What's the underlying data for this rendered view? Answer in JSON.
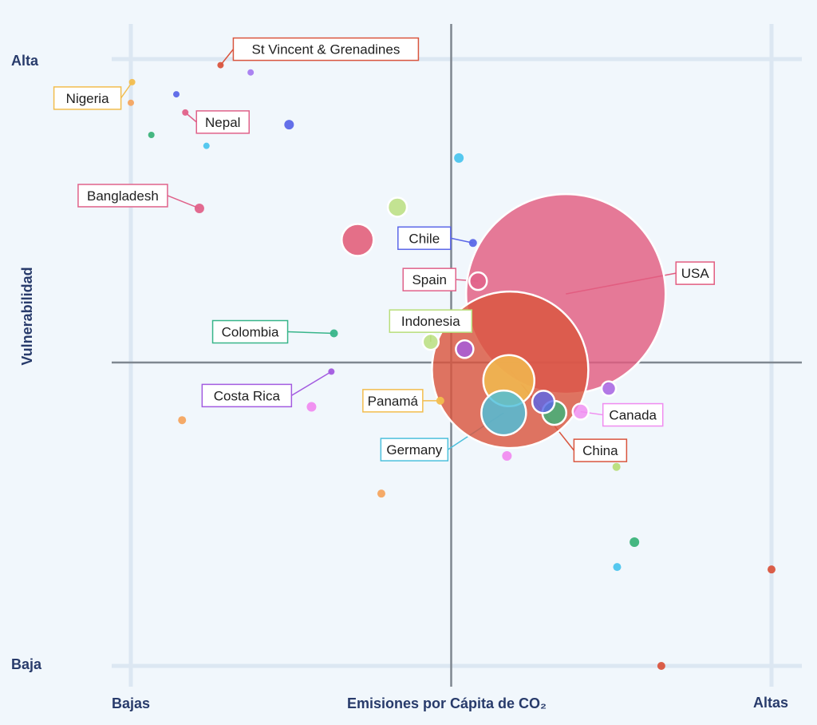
{
  "chart_data": {
    "type": "scatter",
    "title": "",
    "xlabel": "Emisiones por Cápita de CO₂",
    "ylabel": "Vulnerabilidad",
    "x_tick_labels": [
      "Bajas",
      "Altas"
    ],
    "y_tick_labels": [
      "Alta",
      "Baja"
    ],
    "xlim": [
      0,
      100
    ],
    "ylim": [
      0,
      100
    ],
    "quadrant_lines": {
      "x": 50,
      "y": 50
    },
    "grid": true,
    "points": [
      {
        "name": "St Vincent & Grenadines",
        "x": 14,
        "y": 99,
        "size": 4,
        "color": "#d9553e"
      },
      {
        "name": "",
        "x": 18.7,
        "y": 97.8,
        "size": 4,
        "color": "#a77cf0"
      },
      {
        "name": "Nigeria",
        "x": 0.2,
        "y": 96.2,
        "size": 4,
        "color": "#f2bd4e"
      },
      {
        "name": "",
        "x": 7.1,
        "y": 94.2,
        "size": 4,
        "color": "#5b67e8"
      },
      {
        "name": "",
        "x": 0,
        "y": 92.8,
        "size": 4,
        "color": "#f4a560"
      },
      {
        "name": "Nepal",
        "x": 8.5,
        "y": 91.2,
        "size": 4,
        "color": "#e0628a"
      },
      {
        "name": "",
        "x": 24.7,
        "y": 89.2,
        "size": 6,
        "color": "#5b67e8"
      },
      {
        "name": "",
        "x": 3.2,
        "y": 87.5,
        "size": 4,
        "color": "#3bb37a"
      },
      {
        "name": "",
        "x": 11.8,
        "y": 85.7,
        "size": 4,
        "color": "#4cc5ee"
      },
      {
        "name": "",
        "x": 51.2,
        "y": 83.7,
        "size": 6,
        "color": "#4cc5ee"
      },
      {
        "name": "",
        "x": 41.6,
        "y": 75.6,
        "size": 12,
        "color": "#b8de7a"
      },
      {
        "name": "Bangladesh",
        "x": 10.7,
        "y": 75.4,
        "size": 6,
        "color": "#e0628a"
      },
      {
        "name": "",
        "x": 35.4,
        "y": 70.2,
        "size": 20,
        "color": "#e0506e"
      },
      {
        "name": "Chile",
        "x": 53.4,
        "y": 69.7,
        "size": 5,
        "color": "#5b67e8"
      },
      {
        "name": "Spain",
        "x": 54.2,
        "y": 63.4,
        "size": 11,
        "color": "#e0628a"
      },
      {
        "name": "USA",
        "x": 67.9,
        "y": 61.3,
        "size": 125,
        "color": "#e25d80"
      },
      {
        "name": "Colombia",
        "x": 31.7,
        "y": 54.8,
        "size": 5,
        "color": "#38b58a"
      },
      {
        "name": "Indonesia",
        "x": 46.8,
        "y": 53.4,
        "size": 10,
        "color": "#b8de7a"
      },
      {
        "name": "",
        "x": 52.1,
        "y": 52.2,
        "size": 11,
        "color": "#a35be0"
      },
      {
        "name": "China",
        "x": 59.2,
        "y": 48.8,
        "size": 98,
        "color": "#d9553e"
      },
      {
        "name": "",
        "x": 59,
        "y": 47,
        "size": 32,
        "color": "#f2bd4e"
      },
      {
        "name": "Costa Rica",
        "x": 31.3,
        "y": 48.5,
        "size": 4,
        "color": "#a35be0"
      },
      {
        "name": "",
        "x": 74.6,
        "y": 45.7,
        "size": 9,
        "color": "#a35be0"
      },
      {
        "name": "Panamá",
        "x": 48.3,
        "y": 43.7,
        "size": 5,
        "color": "#f2bd4e"
      },
      {
        "name": "",
        "x": 64.4,
        "y": 43.5,
        "size": 14,
        "color": "#5b67e8"
      },
      {
        "name": "",
        "x": 28.2,
        "y": 42.7,
        "size": 6,
        "color": "#f08cf0"
      },
      {
        "name": "Germany",
        "x": 58.2,
        "y": 41.7,
        "size": 28,
        "color": "#4cc0dc"
      },
      {
        "name": "Canada",
        "x": 70.2,
        "y": 41.9,
        "size": 10,
        "color": "#f08cf0"
      },
      {
        "name": "",
        "x": 66.1,
        "y": 41.7,
        "size": 15,
        "color": "#3bb37a"
      },
      {
        "name": "",
        "x": 8,
        "y": 40.5,
        "size": 5,
        "color": "#f4a560"
      },
      {
        "name": "",
        "x": 58.7,
        "y": 34.6,
        "size": 6,
        "color": "#f08cf0"
      },
      {
        "name": "",
        "x": 75.8,
        "y": 32.8,
        "size": 5,
        "color": "#b8de7a"
      },
      {
        "name": "",
        "x": 39.1,
        "y": 28.4,
        "size": 5,
        "color": "#f4a560"
      },
      {
        "name": "",
        "x": 78.6,
        "y": 20.4,
        "size": 6,
        "color": "#3bb37a"
      },
      {
        "name": "",
        "x": 75.9,
        "y": 16.3,
        "size": 5,
        "color": "#4cc5ee"
      },
      {
        "name": "",
        "x": 100,
        "y": 15.9,
        "size": 5,
        "color": "#d9553e"
      },
      {
        "name": "",
        "x": 82.8,
        "y": 0,
        "size": 5,
        "color": "#d9553e"
      }
    ]
  }
}
